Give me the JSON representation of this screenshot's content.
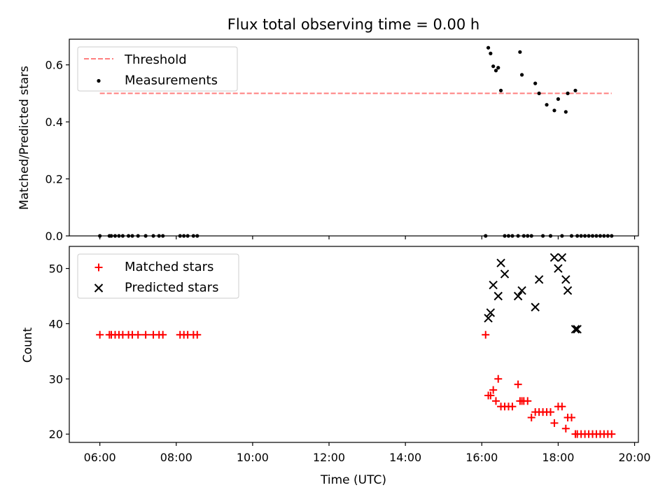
{
  "chart_data": [
    {
      "type": "scatter",
      "title": "Flux total observing time = 0.00 h",
      "ylabel": "Matched/Predicted stars",
      "xlabel": "",
      "xlim": [
        5.2,
        20.1
      ],
      "ylim": [
        0,
        0.69
      ],
      "yticks": [
        0,
        0.2,
        0.4,
        0.6
      ],
      "ytick_labels": [
        "0.0",
        "0.2",
        "0.4",
        "0.6"
      ],
      "xticks": [
        6,
        8,
        10,
        12,
        14,
        16,
        18,
        20
      ],
      "grid": false,
      "legend_position": "top-left",
      "legend": [
        "Threshold",
        "Measurements"
      ],
      "series": [
        {
          "name": "Threshold",
          "kind": "dashed-line",
          "color": "#ff7f7f",
          "x": [
            6.0,
            19.4
          ],
          "y": [
            0.5,
            0.5
          ]
        },
        {
          "name": "Measurements",
          "kind": "dots",
          "color": "#000000",
          "x": [
            6.0,
            6.25,
            6.3,
            6.4,
            6.5,
            6.6,
            6.75,
            6.85,
            7.0,
            7.2,
            7.4,
            7.55,
            7.65,
            8.1,
            8.2,
            8.3,
            8.45,
            8.55,
            16.1,
            16.17,
            16.23,
            16.3,
            16.37,
            16.43,
            16.5,
            16.6,
            16.7,
            16.8,
            16.95,
            17.0,
            17.05,
            17.1,
            17.2,
            17.3,
            17.4,
            17.5,
            17.6,
            17.7,
            17.8,
            17.9,
            18.0,
            18.1,
            18.2,
            18.25,
            18.35,
            18.45,
            18.5,
            18.6,
            18.7,
            18.8,
            18.9,
            19.0,
            19.1,
            19.2,
            19.3,
            19.4
          ],
          "y": [
            0,
            0,
            0,
            0,
            0,
            0,
            0,
            0,
            0,
            0,
            0,
            0,
            0,
            0,
            0,
            0,
            0,
            0,
            0,
            0.66,
            0.64,
            0.595,
            0.58,
            0.59,
            0.51,
            0,
            0,
            0,
            0,
            0.645,
            0.565,
            0,
            0,
            0,
            0.535,
            0.5,
            0,
            0.46,
            0,
            0.44,
            0.48,
            0,
            0.435,
            0.5,
            0,
            0.51,
            0,
            0,
            0,
            0,
            0,
            0,
            0,
            0,
            0,
            0
          ]
        }
      ]
    },
    {
      "type": "scatter",
      "title": "",
      "ylabel": "Count",
      "xlabel": "Time (UTC)",
      "xlim": [
        5.2,
        20.1
      ],
      "ylim": [
        18.5,
        54
      ],
      "yticks": [
        20,
        30,
        40,
        50
      ],
      "ytick_labels": [
        "20",
        "30",
        "40",
        "50"
      ],
      "xticks": [
        6,
        8,
        10,
        12,
        14,
        16,
        18,
        20
      ],
      "xtick_labels": [
        "06:00",
        "08:00",
        "10:00",
        "12:00",
        "14:00",
        "16:00",
        "18:00",
        "20:00"
      ],
      "grid": false,
      "legend_position": "top-left",
      "legend": [
        "Matched stars",
        "Predicted stars"
      ],
      "series": [
        {
          "name": "Matched stars",
          "marker": "plus",
          "color": "#ff0000",
          "x": [
            6.0,
            6.25,
            6.3,
            6.4,
            6.5,
            6.6,
            6.75,
            6.85,
            7.0,
            7.2,
            7.4,
            7.55,
            7.65,
            8.1,
            8.2,
            8.3,
            8.45,
            8.55,
            16.1,
            16.17,
            16.23,
            16.3,
            16.37,
            16.43,
            16.5,
            16.6,
            16.7,
            16.8,
            16.95,
            17.0,
            17.05,
            17.1,
            17.2,
            17.3,
            17.4,
            17.5,
            17.6,
            17.7,
            17.8,
            17.9,
            18.0,
            18.1,
            18.2,
            18.25,
            18.35,
            18.45,
            18.5,
            18.6,
            18.7,
            18.8,
            18.9,
            19.0,
            19.1,
            19.2,
            19.3,
            19.4
          ],
          "y": [
            38,
            38,
            38,
            38,
            38,
            38,
            38,
            38,
            38,
            38,
            38,
            38,
            38,
            38,
            38,
            38,
            38,
            38,
            38,
            27,
            27,
            28,
            26,
            30,
            25,
            25,
            25,
            25,
            29,
            26,
            26,
            26,
            26,
            23,
            24,
            24,
            24,
            24,
            24,
            22,
            25,
            25,
            21,
            23,
            23,
            20,
            20,
            20,
            20,
            20,
            20,
            20,
            20,
            20,
            20,
            20
          ]
        },
        {
          "name": "Predicted stars",
          "marker": "x",
          "color": "#000000",
          "x": [
            16.17,
            16.23,
            16.3,
            16.43,
            16.5,
            16.6,
            16.95,
            17.05,
            17.4,
            17.5,
            17.9,
            18.0,
            18.1,
            18.2,
            18.25,
            18.45,
            18.5
          ],
          "y": [
            41,
            42,
            47,
            45,
            51,
            49,
            45,
            46,
            43,
            48,
            52,
            50,
            52,
            48,
            46,
            39,
            39
          ]
        }
      ]
    }
  ]
}
